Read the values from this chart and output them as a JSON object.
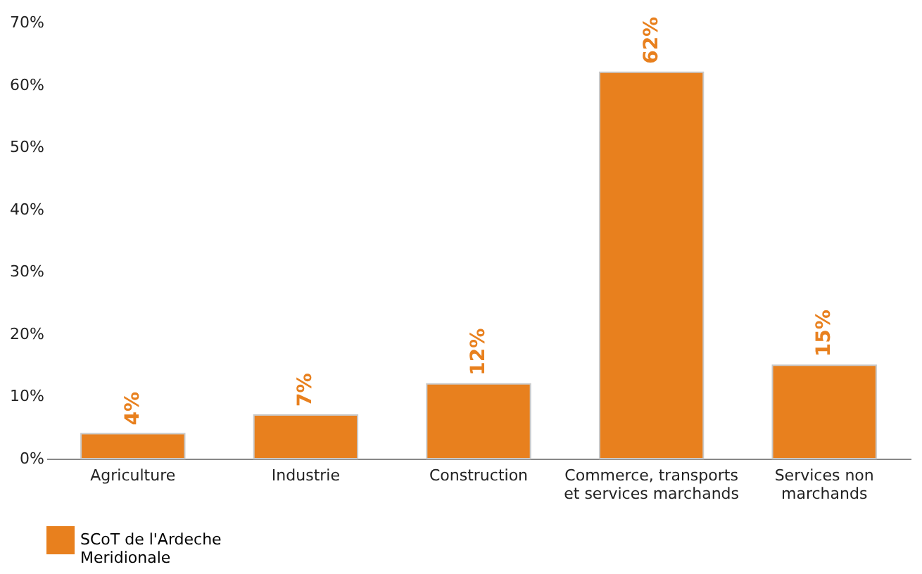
{
  "chart_data": {
    "type": "bar",
    "categories": [
      "Agriculture",
      "Industrie",
      "Construction",
      "Commerce, transports et services marchands",
      "Services non marchands"
    ],
    "series": [
      {
        "name": "SCoT de l'Ardeche Meridionale",
        "color": "#e8801e",
        "values": [
          4,
          7,
          12,
          62,
          15
        ],
        "value_labels": [
          "4%",
          "7%",
          "12%",
          "62%",
          "15%"
        ]
      }
    ],
    "ylim": [
      0,
      70
    ],
    "yticks": [
      {
        "value": 0,
        "label": "0%"
      },
      {
        "value": 10,
        "label": "10%"
      },
      {
        "value": 20,
        "label": "20%"
      },
      {
        "value": 30,
        "label": "30%"
      },
      {
        "value": 40,
        "label": "40%"
      },
      {
        "value": 50,
        "label": "50%"
      },
      {
        "value": 60,
        "label": "60%"
      },
      {
        "value": 70,
        "label": "70%"
      }
    ],
    "grid": false,
    "legend": "bottom"
  }
}
